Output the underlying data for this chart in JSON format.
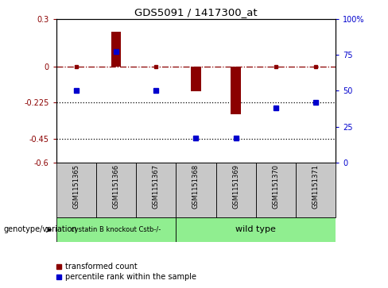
{
  "title": "GDS5091 / 1417300_at",
  "samples": [
    "GSM1151365",
    "GSM1151366",
    "GSM1151367",
    "GSM1151368",
    "GSM1151369",
    "GSM1151370",
    "GSM1151371"
  ],
  "red_values": [
    0.0,
    0.22,
    0.0,
    -0.155,
    -0.295,
    0.0,
    0.0
  ],
  "blue_values_pct": [
    50,
    77,
    50,
    17,
    17,
    38,
    42
  ],
  "ylim_left": [
    -0.6,
    0.3
  ],
  "ylim_right": [
    0,
    100
  ],
  "yticks_left": [
    -0.6,
    -0.45,
    -0.225,
    0.0,
    0.3
  ],
  "yticks_right": [
    0,
    25,
    50,
    75,
    100
  ],
  "ytick_labels_left": [
    "-0.6",
    "-0.45",
    "-0.225",
    "0",
    "0.3"
  ],
  "ytick_labels_right": [
    "0",
    "25",
    "50",
    "75",
    "100%"
  ],
  "hline_y": 0.0,
  "dotted_lines": [
    -0.225,
    -0.45
  ],
  "group1_samples": [
    0,
    1,
    2
  ],
  "group2_samples": [
    3,
    4,
    5,
    6
  ],
  "group1_label": "cystatin B knockout Cstb-/-",
  "group2_label": "wild type",
  "group1_color": "#90EE90",
  "group2_color": "#90EE90",
  "bar_color": "#8B0000",
  "dot_color": "#0000CD",
  "legend_label_red": "transformed count",
  "legend_label_blue": "percentile rank within the sample",
  "genotype_label": "genotype/variation",
  "background_xtick": "#C8C8C8"
}
